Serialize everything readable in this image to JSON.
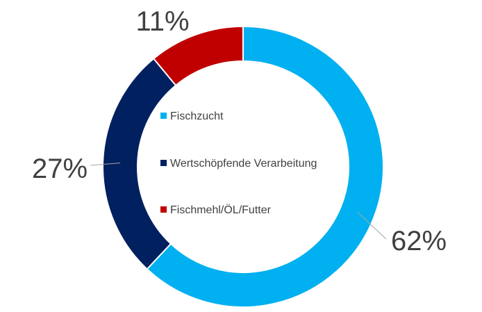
{
  "chart_data": {
    "type": "pie",
    "variant": "donut",
    "title": "",
    "legend_position": "center",
    "slices": [
      {
        "label": "Fischzucht",
        "value": 62,
        "display": "62%",
        "color": "#00B0F0"
      },
      {
        "label": "Wertschöpfende Verarbeitung",
        "value": 27,
        "display": "27%",
        "color": "#002060"
      },
      {
        "label": "Fischmehl/ÖL/Futter",
        "value": 11,
        "display": "11%",
        "color": "#C00000"
      }
    ]
  }
}
